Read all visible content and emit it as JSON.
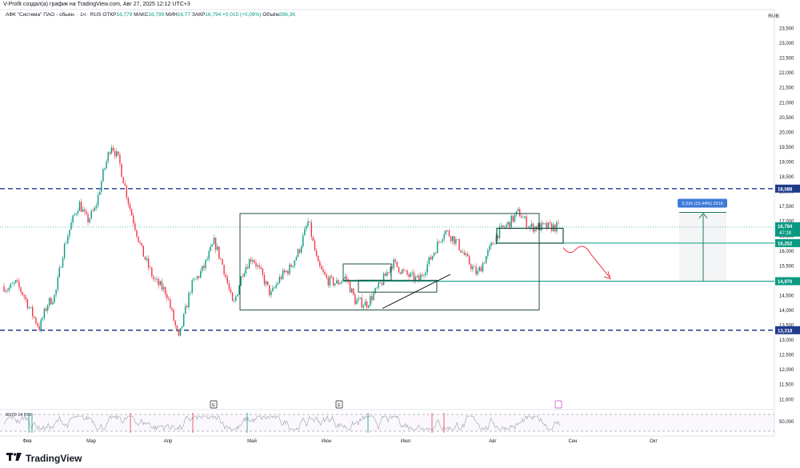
{
  "header": {
    "credit": "V-Profit создал(а) график на TradingView.com, Авг 27, 2025 12:12 UTC+3",
    "symbol": "АФК \"Система\" ПАО - обыкн. · 1ч · RUS",
    "open_label": "ОТКР",
    "open": "16,779",
    "high_label": "МАКС",
    "high": "16,799",
    "low_label": "МИН",
    "low": "16,77",
    "close_label": "ЗАКР",
    "close": "16,794",
    "change": "+0,015 (+0,09%)",
    "volume_label": "Объём",
    "volume": "396,3K",
    "currency": "RUB"
  },
  "brand": {
    "name": "TradingView",
    "logo_icon": "tradingview-logo-icon"
  },
  "chart_data": {
    "type": "candlestick",
    "y_axis": {
      "min": 10.75,
      "max": 23.75,
      "ticks": [
        "11,000",
        "11,500",
        "12,000",
        "12,500",
        "13,000",
        "13,500",
        "14,000",
        "14,500",
        "15,000",
        "15,500",
        "16,000",
        "16,500",
        "17,000",
        "17,500",
        "18,000",
        "18,500",
        "19,000",
        "19,500",
        "20,000",
        "20,500",
        "21,000",
        "21,500",
        "22,000",
        "22,500",
        "23,000",
        "23,500"
      ]
    },
    "x_axis": {
      "labels": [
        "Фев",
        "Мар",
        "Апр",
        "Май",
        "Июн",
        "Июл",
        "Авг",
        "Сен",
        "Окт"
      ]
    },
    "price_path": [
      [
        "Фев",
        14.7
      ],
      [
        "Фев",
        14.9
      ],
      [
        "Фев",
        14.5
      ],
      [
        "Фев",
        13.9
      ],
      [
        "Фев",
        13.4
      ],
      [
        "Фев",
        14.2
      ],
      [
        "Фев",
        14.5
      ],
      [
        "Мар",
        16.0
      ],
      [
        "Мар",
        16.9
      ],
      [
        "Мар",
        17.6
      ],
      [
        "Мар",
        17.0
      ],
      [
        "Мар",
        17.4
      ],
      [
        "Мар",
        18.6
      ],
      [
        "Мар",
        19.6
      ],
      [
        "Мар",
        19.0
      ],
      [
        "Апр",
        17.5
      ],
      [
        "Апр",
        16.0
      ],
      [
        "Апр",
        15.0
      ],
      [
        "Апр",
        14.6
      ],
      [
        "Апр",
        13.0
      ],
      [
        "Апр",
        14.8
      ],
      [
        "Апр",
        15.4
      ],
      [
        "Май",
        16.3
      ],
      [
        "Май",
        15.4
      ],
      [
        "Май",
        14.1
      ],
      [
        "Май",
        15.3
      ],
      [
        "Май",
        15.8
      ],
      [
        "Май",
        15.2
      ],
      [
        "Май",
        14.5
      ],
      [
        "Май",
        15.1
      ],
      [
        "Май",
        15.4
      ],
      [
        "Июн",
        16.0
      ],
      [
        "Июн",
        17.0
      ],
      [
        "Июн",
        15.5
      ],
      [
        "Июн",
        15.0
      ],
      [
        "Июн",
        14.9
      ],
      [
        "Июн",
        15.1
      ],
      [
        "Июн",
        14.3
      ],
      [
        "Июл",
        14.2
      ],
      [
        "Июл",
        14.8
      ],
      [
        "Июл",
        15.6
      ],
      [
        "Июл",
        15.2
      ],
      [
        "Июл",
        15.0
      ],
      [
        "Июл",
        15.8
      ],
      [
        "Июл",
        16.7
      ],
      [
        "Авг",
        16.3
      ],
      [
        "Авг",
        15.7
      ],
      [
        "Авг",
        15.2
      ],
      [
        "Авг",
        15.9
      ],
      [
        "Авг",
        16.6
      ],
      [
        "Авг",
        16.9
      ],
      [
        "Авг",
        17.3
      ],
      [
        "Авг",
        16.8
      ]
    ],
    "horizontal_levels": [
      {
        "value": 18.088,
        "label": "18,088",
        "style": "dashed",
        "color": "#1e3a8a"
      },
      {
        "value": 13.318,
        "label": "13,318",
        "style": "dashed",
        "color": "#1e3a8a"
      },
      {
        "value": 16.252,
        "label": "16,252",
        "style": "solid",
        "color": "#089981"
      },
      {
        "value": 14.97,
        "label": "14,970",
        "style": "solid",
        "color": "#089981"
      }
    ],
    "last_price": {
      "value": 16.794,
      "label": "16,794",
      "countdown": "47:28",
      "color": "#089981"
    },
    "measure": {
      "label": "2,316 (15,44%) 2316",
      "from": 14.97,
      "to": 17.286
    },
    "annotations": {
      "earnings_marker": "E"
    },
    "rsi": {
      "label": "80/20 14 RSI",
      "tick": "50,000",
      "levels": [
        80,
        20
      ]
    }
  }
}
